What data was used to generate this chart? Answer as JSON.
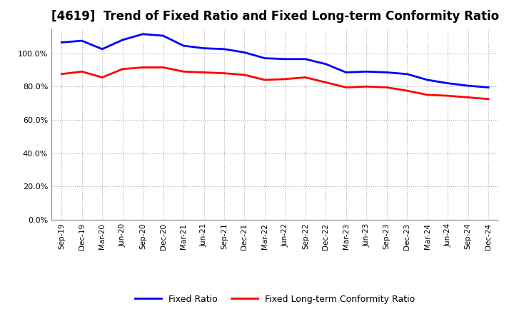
{
  "title": "[4619]  Trend of Fixed Ratio and Fixed Long-term Conformity Ratio",
  "labels": [
    "Sep-19",
    "Dec-19",
    "Mar-20",
    "Jun-20",
    "Sep-20",
    "Dec-20",
    "Mar-21",
    "Jun-21",
    "Sep-21",
    "Dec-21",
    "Mar-22",
    "Jun-22",
    "Sep-22",
    "Dec-22",
    "Mar-23",
    "Jun-23",
    "Sep-23",
    "Dec-23",
    "Mar-24",
    "Jun-24",
    "Sep-24",
    "Dec-24"
  ],
  "fixed_ratio": [
    106.5,
    107.5,
    102.5,
    108.0,
    111.5,
    110.5,
    104.5,
    103.0,
    102.5,
    100.5,
    97.0,
    96.5,
    96.5,
    93.5,
    88.5,
    89.0,
    88.5,
    87.5,
    84.0,
    82.0,
    80.5,
    79.5
  ],
  "fixed_lt_ratio": [
    87.5,
    89.0,
    85.5,
    90.5,
    91.5,
    91.5,
    89.0,
    88.5,
    88.0,
    87.0,
    84.0,
    84.5,
    85.5,
    82.5,
    79.5,
    80.0,
    79.5,
    77.5,
    75.0,
    74.5,
    73.5,
    72.5
  ],
  "fixed_ratio_color": "#0000ff",
  "fixed_lt_ratio_color": "#ff0000",
  "ylim": [
    0,
    115
  ],
  "yticks": [
    0,
    20,
    40,
    60,
    80,
    100
  ],
  "ytick_labels": [
    "0.0%",
    "20.0%",
    "40.0%",
    "60.0%",
    "80.0%",
    "100.0%"
  ],
  "bg_color": "#ffffff",
  "grid_color": "#aaaaaa",
  "title_fontsize": 12,
  "legend_labels": [
    "Fixed Ratio",
    "Fixed Long-term Conformity Ratio"
  ]
}
